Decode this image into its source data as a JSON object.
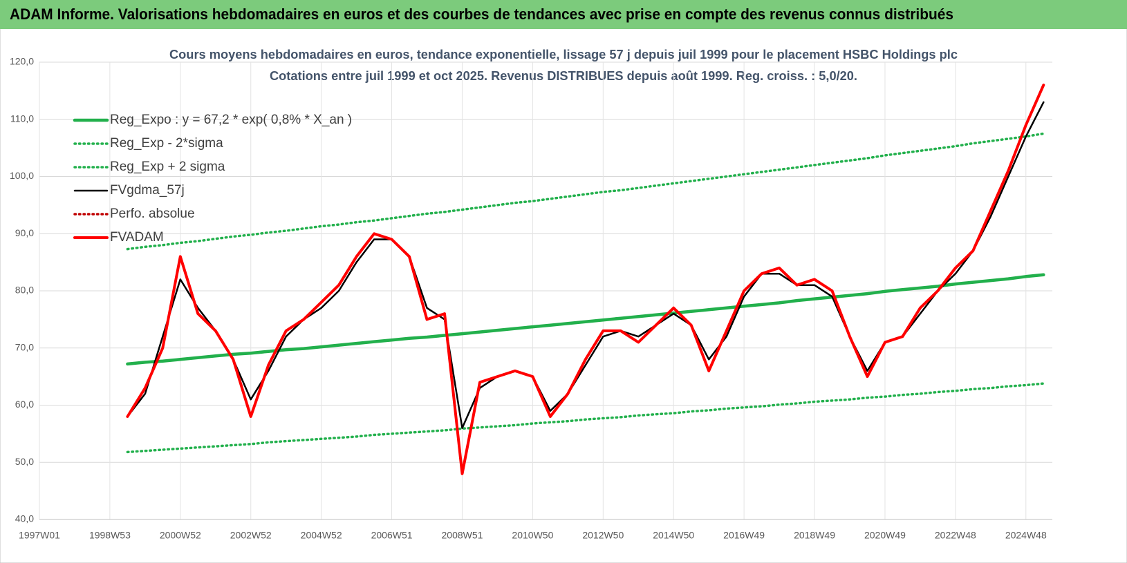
{
  "header": {
    "title": "ADAM Informe. Valorisations hebdomadaires en euros et des courbes de tendances avec prise en compte des revenus connus distribués"
  },
  "chart_data": {
    "type": "line",
    "title": "Cours moyens hebdomadaires en euros, tendance exponentielle, lissage 57 j depuis juil 1999 pour le placement HSBC Holdings plc",
    "subtitle": "Cotations entre juil 1999 et oct 2025. Revenus DISTRIBUES depuis août 1999. Reg. croiss. : 5,0/20.",
    "categories": [
      "1997W01",
      null,
      null,
      null,
      "1998W53",
      null,
      null,
      null,
      "2000W52",
      null,
      null,
      null,
      "2002W52",
      null,
      null,
      null,
      "2004W52",
      null,
      null,
      null,
      "2006W51",
      null,
      null,
      null,
      "2008W51",
      null,
      null,
      null,
      "2010W50",
      null,
      null,
      null,
      "2012W50",
      null,
      null,
      null,
      "2014W50",
      null,
      null,
      null,
      "2016W49",
      null,
      null,
      null,
      "2018W49",
      null,
      null,
      null,
      "2020W49",
      null,
      null,
      null,
      "2022W48",
      null,
      null,
      null,
      "2024W48",
      null
    ],
    "ylim": [
      40,
      120
    ],
    "yticks": [
      {
        "value": 40,
        "label": "40,0"
      },
      {
        "value": 50,
        "label": "50,0"
      },
      {
        "value": 60,
        "label": "60,0"
      },
      {
        "value": 70,
        "label": "70,0"
      },
      {
        "value": 80,
        "label": "80,0"
      },
      {
        "value": 90,
        "label": "90,0"
      },
      {
        "value": 100,
        "label": "100,0"
      },
      {
        "value": 110,
        "label": "110,0"
      },
      {
        "value": 120,
        "label": "120,0"
      }
    ],
    "grid": true,
    "legend": "upper left",
    "series": [
      {
        "name": "Reg_Expo : y = 67,2 * exp( 0,8% *  X_an )",
        "color": "#22b04c",
        "style": "solid",
        "values": [
          null,
          null,
          null,
          null,
          null,
          67.2,
          67.5,
          67.7,
          68.0,
          68.3,
          68.6,
          68.9,
          69.1,
          69.4,
          69.7,
          69.9,
          70.2,
          70.5,
          70.8,
          71.1,
          71.4,
          71.7,
          71.9,
          72.2,
          72.5,
          72.8,
          73.1,
          73.4,
          73.7,
          74.0,
          74.3,
          74.6,
          74.9,
          75.2,
          75.5,
          75.8,
          76.1,
          76.4,
          76.7,
          77.0,
          77.3,
          77.6,
          77.9,
          78.3,
          78.6,
          78.9,
          79.2,
          79.5,
          79.9,
          80.2,
          80.5,
          80.8,
          81.2,
          81.5,
          81.8,
          82.1,
          82.5,
          82.8
        ]
      },
      {
        "name": "Reg_Exp - 2*sigma",
        "color": "#22b04c",
        "style": "dotted",
        "values": [
          null,
          null,
          null,
          null,
          null,
          51.8,
          52.0,
          52.2,
          52.4,
          52.6,
          52.8,
          53.0,
          53.2,
          53.5,
          53.7,
          53.9,
          54.1,
          54.3,
          54.5,
          54.8,
          55.0,
          55.2,
          55.4,
          55.6,
          55.9,
          56.1,
          56.3,
          56.5,
          56.8,
          57.0,
          57.2,
          57.5,
          57.7,
          57.9,
          58.2,
          58.4,
          58.6,
          58.9,
          59.1,
          59.4,
          59.6,
          59.8,
          60.1,
          60.3,
          60.6,
          60.8,
          61.0,
          61.3,
          61.5,
          61.8,
          62.0,
          62.3,
          62.5,
          62.8,
          63.0,
          63.3,
          63.5,
          63.8
        ]
      },
      {
        "name": "Reg_Exp + 2 sigma",
        "color": "#22b04c",
        "style": "dotted",
        "values": [
          null,
          null,
          null,
          null,
          null,
          87.3,
          87.7,
          88.0,
          88.4,
          88.7,
          89.1,
          89.5,
          89.8,
          90.2,
          90.5,
          90.9,
          91.3,
          91.6,
          92.0,
          92.3,
          92.7,
          93.1,
          93.5,
          93.8,
          94.2,
          94.6,
          95.0,
          95.4,
          95.7,
          96.1,
          96.5,
          96.9,
          97.3,
          97.6,
          98.0,
          98.4,
          98.8,
          99.2,
          99.6,
          100.0,
          100.4,
          100.8,
          101.2,
          101.6,
          102.0,
          102.4,
          102.8,
          103.2,
          103.7,
          104.1,
          104.5,
          104.9,
          105.3,
          105.8,
          106.2,
          106.6,
          107.0,
          107.5
        ]
      },
      {
        "name": "FVgdma_57j",
        "color": "#000000",
        "style": "solid",
        "values": [
          null,
          null,
          null,
          null,
          null,
          58,
          62,
          72,
          82,
          77,
          73,
          68,
          61,
          66,
          72,
          75,
          77,
          80,
          85,
          89,
          89,
          86,
          77,
          75,
          56,
          63,
          65,
          66,
          65,
          59,
          62,
          67,
          72,
          73,
          72,
          74,
          76,
          74,
          68,
          72,
          79,
          83,
          83,
          81,
          81,
          79,
          72,
          66,
          71,
          72,
          76,
          80,
          83,
          87,
          93,
          100,
          107,
          113
        ]
      },
      {
        "name": "Perfo. absolue",
        "color": "#c00000",
        "style": "dotted",
        "values": [
          null,
          null,
          null,
          null,
          null,
          null,
          null,
          null,
          null,
          null,
          null,
          null,
          null,
          null,
          null,
          null,
          null,
          null,
          null,
          null,
          null,
          null,
          null,
          null,
          null,
          null,
          null,
          null,
          null,
          null,
          null,
          null,
          null,
          null,
          null,
          null,
          null,
          null,
          null,
          null,
          null,
          null,
          null,
          null,
          null,
          null,
          null,
          null,
          null,
          null,
          null,
          null,
          null,
          null,
          null,
          null,
          null,
          null
        ]
      },
      {
        "name": "FVADAM",
        "color": "#ff0000",
        "style": "thick",
        "values": [
          null,
          null,
          null,
          null,
          null,
          58,
          63,
          70,
          86,
          76,
          73,
          68,
          58,
          67,
          73,
          75,
          78,
          81,
          86,
          90,
          89,
          86,
          75,
          76,
          48,
          64,
          65,
          66,
          65,
          58,
          62,
          68,
          73,
          73,
          71,
          74,
          77,
          74,
          66,
          73,
          80,
          83,
          84,
          81,
          82,
          80,
          72,
          65,
          71,
          72,
          77,
          80,
          84,
          87,
          94,
          101,
          109,
          116
        ]
      }
    ]
  }
}
